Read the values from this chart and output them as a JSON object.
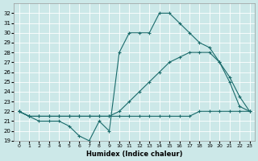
{
  "xlabel": "Humidex (Indice chaleur)",
  "bg_color": "#cce8e8",
  "line_color": "#1a6b6b",
  "grid_color": "#ffffff",
  "xlim": [
    -0.5,
    23.5
  ],
  "ylim": [
    19,
    33
  ],
  "yticks": [
    19,
    20,
    21,
    22,
    23,
    24,
    25,
    26,
    27,
    28,
    29,
    30,
    31,
    32
  ],
  "xticks": [
    0,
    1,
    2,
    3,
    4,
    5,
    6,
    7,
    8,
    9,
    10,
    11,
    12,
    13,
    14,
    15,
    16,
    17,
    18,
    19,
    20,
    21,
    22,
    23
  ],
  "line1_x": [
    0,
    1,
    2,
    3,
    4,
    5,
    6,
    7,
    8,
    9,
    10,
    11,
    12,
    13,
    14,
    15,
    16,
    17,
    18,
    19,
    20,
    21,
    22,
    23
  ],
  "line1_y": [
    22,
    21.5,
    21,
    21,
    21,
    20.5,
    19.5,
    19,
    21,
    20,
    28,
    30,
    30,
    30,
    32,
    32,
    31,
    30,
    29,
    28.5,
    27,
    25,
    22.5,
    22
  ],
  "line2_x": [
    0,
    1,
    2,
    3,
    4,
    5,
    6,
    7,
    8,
    9,
    10,
    11,
    12,
    13,
    14,
    15,
    16,
    17,
    18,
    19,
    20,
    21,
    22,
    23
  ],
  "line2_y": [
    22,
    21.5,
    21.5,
    21.5,
    21.5,
    21.5,
    21.5,
    21.5,
    21.5,
    21.5,
    21.5,
    21.5,
    21.5,
    21.5,
    21.5,
    21.5,
    21.5,
    21.5,
    22,
    22,
    22,
    22,
    22,
    22
  ],
  "line3_x": [
    0,
    1,
    2,
    3,
    4,
    5,
    6,
    7,
    8,
    9,
    10,
    11,
    12,
    13,
    14,
    15,
    16,
    17,
    18,
    19,
    20,
    21,
    22,
    23
  ],
  "line3_y": [
    22,
    21.5,
    21.5,
    21.5,
    21.5,
    21.5,
    21.5,
    21.5,
    21.5,
    21.5,
    22,
    23,
    24,
    25,
    26,
    27,
    27.5,
    28,
    28,
    28,
    27,
    25.5,
    23.5,
    22
  ]
}
